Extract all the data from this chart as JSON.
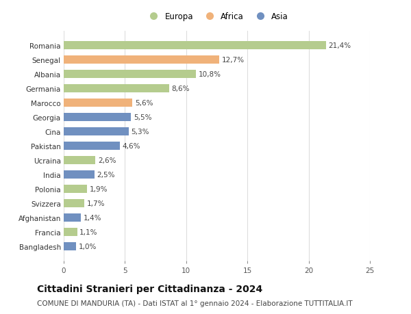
{
  "countries": [
    "Bangladesh",
    "Francia",
    "Afghanistan",
    "Svizzera",
    "Polonia",
    "India",
    "Ucraina",
    "Pakistan",
    "Cina",
    "Georgia",
    "Marocco",
    "Germania",
    "Albania",
    "Senegal",
    "Romania"
  ],
  "values": [
    1.0,
    1.1,
    1.4,
    1.7,
    1.9,
    2.5,
    2.6,
    4.6,
    5.3,
    5.5,
    5.6,
    8.6,
    10.8,
    12.7,
    21.4
  ],
  "labels": [
    "1,0%",
    "1,1%",
    "1,4%",
    "1,7%",
    "1,9%",
    "2,5%",
    "2,6%",
    "4,6%",
    "5,3%",
    "5,5%",
    "5,6%",
    "8,6%",
    "10,8%",
    "12,7%",
    "21,4%"
  ],
  "continents": [
    "Asia",
    "Europa",
    "Asia",
    "Europa",
    "Europa",
    "Asia",
    "Europa",
    "Asia",
    "Asia",
    "Asia",
    "Africa",
    "Europa",
    "Europa",
    "Africa",
    "Europa"
  ],
  "continent_colors": {
    "Europa": "#b5cc8e",
    "Africa": "#f0b27a",
    "Asia": "#7090c0"
  },
  "legend_labels": [
    "Europa",
    "Africa",
    "Asia"
  ],
  "legend_colors": [
    "#b5cc8e",
    "#f0b27a",
    "#7090c0"
  ],
  "xlim": [
    0,
    25
  ],
  "xticks": [
    0,
    5,
    10,
    15,
    20,
    25
  ],
  "title": "Cittadini Stranieri per Cittadinanza - 2024",
  "subtitle": "COMUNE DI MANDURIA (TA) - Dati ISTAT al 1° gennaio 2024 - Elaborazione TUTTITALIA.IT",
  "bg_color": "#ffffff",
  "grid_color": "#dddddd",
  "bar_height": 0.55,
  "title_fontsize": 10,
  "subtitle_fontsize": 7.5,
  "label_fontsize": 7.5,
  "tick_fontsize": 7.5,
  "legend_fontsize": 8.5
}
